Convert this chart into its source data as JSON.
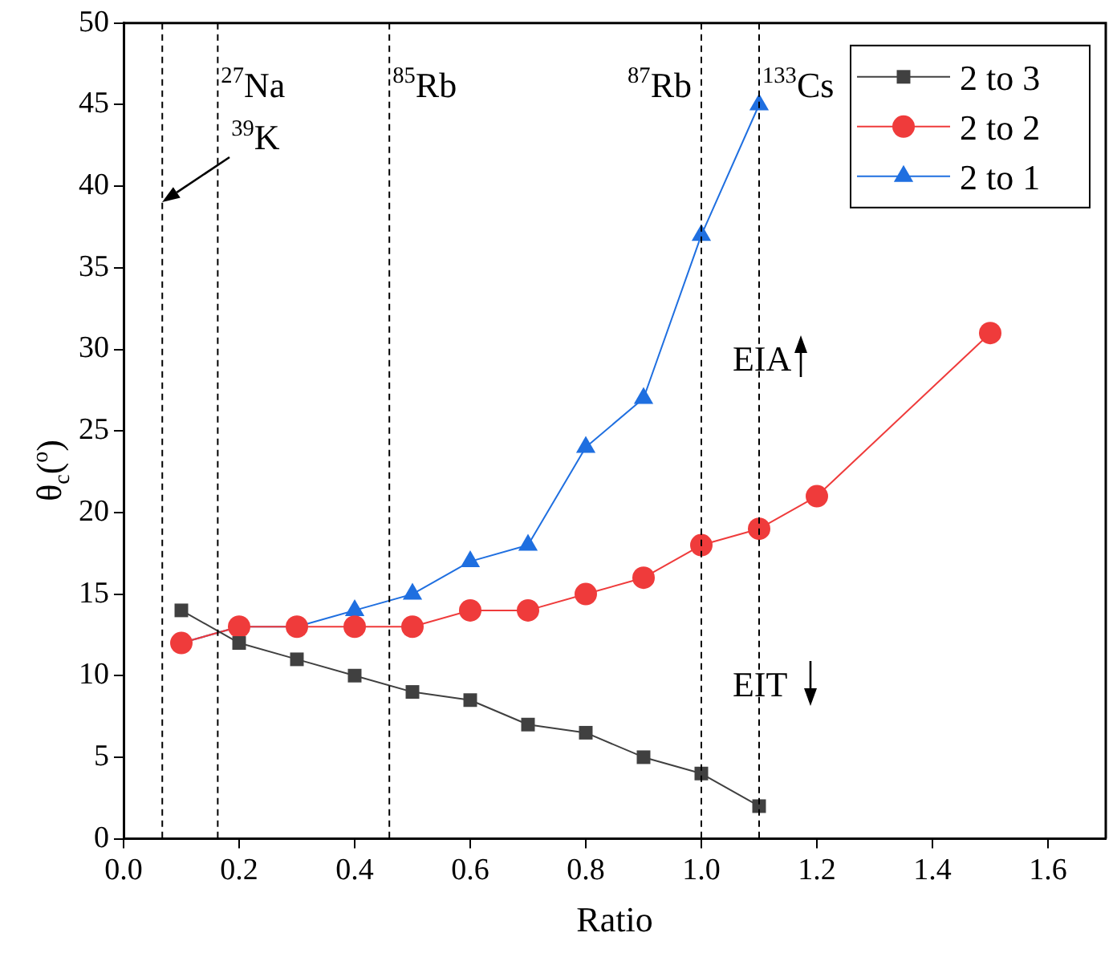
{
  "chart_data": {
    "type": "line",
    "xlabel": "Ratio",
    "ylabel": "θ$_{c}$($^{o}$)",
    "xlim": [
      0,
      1.7
    ],
    "xticks": [
      {
        "value": 0,
        "label": "0.0"
      },
      {
        "value": 0.2,
        "label": "0.2"
      },
      {
        "value": 0.4,
        "label": "0.4"
      },
      {
        "value": 0.6,
        "label": "0.6"
      },
      {
        "value": 0.8,
        "label": "0.8"
      },
      {
        "value": 1,
        "label": "1.0"
      },
      {
        "value": 1.2,
        "label": "1.2"
      },
      {
        "value": 1.4,
        "label": "1.4"
      },
      {
        "value": 1.6,
        "label": "1.6"
      }
    ],
    "ylim": [
      0,
      50
    ],
    "yticks": [
      0,
      5,
      10,
      15,
      20,
      25,
      30,
      35,
      40,
      45,
      50
    ],
    "grid": false,
    "legend": "top right",
    "series": [
      {
        "name": "2 to 3",
        "color": "#404040",
        "marker": "square",
        "x": [
          0.1,
          0.2,
          0.3,
          0.4,
          0.5,
          0.6,
          0.7,
          0.8,
          0.9,
          1.0,
          1.1
        ],
        "values": [
          14,
          12,
          11,
          10,
          9,
          8.5,
          7,
          6.5,
          5,
          4,
          2
        ]
      },
      {
        "name": "2 to 2",
        "color": "#ef3b3b",
        "marker": "circle",
        "x": [
          0.1,
          0.2,
          0.3,
          0.4,
          0.5,
          0.6,
          0.7,
          0.8,
          0.9,
          1.0,
          1.1,
          1.2,
          1.5
        ],
        "values": [
          12,
          13,
          13,
          13,
          13,
          14,
          14,
          15,
          16,
          18,
          19,
          21,
          31
        ]
      },
      {
        "name": "2 to 1",
        "color": "#1f6fe0",
        "marker": "triangle",
        "x": [
          0.1,
          0.2,
          0.3,
          0.4,
          0.5,
          0.6,
          0.7,
          0.8,
          0.9,
          1.0,
          1.1
        ],
        "values": [
          12,
          13,
          13,
          14,
          15,
          17,
          18,
          24,
          27,
          37,
          45
        ]
      }
    ],
    "ref_lines": [
      {
        "axis": "x",
        "value": 0.067,
        "line_style": "dashed",
        "color": "#000000"
      },
      {
        "axis": "x",
        "value": 0.163,
        "label": "$^{27}$Na",
        "line_style": "dashed",
        "color": "#000000"
      },
      {
        "axis": "x",
        "value": 0.46,
        "label": "$^{85}$Rb",
        "line_style": "dashed",
        "color": "#000000"
      },
      {
        "axis": "x",
        "value": 1.0,
        "label": "$^{87}$Rb",
        "line_style": "dashed",
        "color": "#000000"
      },
      {
        "axis": "x",
        "value": 1.1,
        "label": "$^{133}$Cs",
        "line_style": "dashed",
        "color": "#000000"
      }
    ],
    "annotations": [
      {
        "text": "$^{39}$K",
        "x": 0.067,
        "y": 39
      },
      "EIA",
      "EIT"
    ]
  }
}
